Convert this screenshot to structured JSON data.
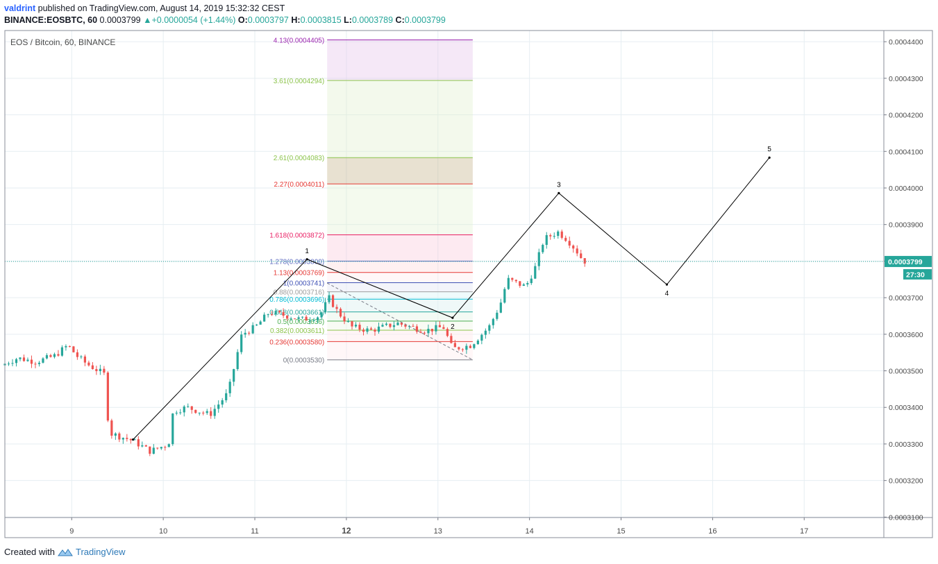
{
  "header": {
    "author": "valdrint",
    "published_text": "published on TradingView.com, August 14, 2019 15:32:32 CEST",
    "symbol": "BINANCE:EOSBTC, 60",
    "last": "0.0003799",
    "change": "+0.0000054 (+1.44%)",
    "o_label": "O:",
    "o_value": "0.0003797",
    "h_label": "H:",
    "h_value": "0.0003815",
    "l_label": "L:",
    "l_value": "0.0003789",
    "c_label": "C:",
    "c_value": "0.0003799"
  },
  "footer": {
    "created_with": "Created with",
    "brand": "TradingView"
  },
  "colors": {
    "up": "#26a69a",
    "down": "#ef5350",
    "grid": "#e6eef2",
    "axis": "#787b86",
    "price_line": "#26a69a",
    "wave_line": "#000000"
  },
  "chart_data": {
    "type": "candlestick",
    "title": "EOS / Bitcoin, 60, BINANCE",
    "x_axis": {
      "ticks": [
        "9",
        "10",
        "11",
        "12",
        "13",
        "14",
        "15",
        "16",
        "17"
      ],
      "bold_tick": "12",
      "range_days": [
        8.27,
        17.87
      ]
    },
    "y_axis": {
      "ticks": [
        "0.0003100",
        "0.0003200",
        "0.0003300",
        "0.0003400",
        "0.0003500",
        "0.0003600",
        "0.0003700",
        "0.0003800",
        "0.0003900",
        "0.0004000",
        "0.0004100",
        "0.0004200",
        "0.0004300",
        "0.0004400"
      ],
      "range": [
        0.00030988,
        0.00044306
      ]
    },
    "current_price": {
      "label": "0.0003799",
      "countdown": "27:30",
      "value": 0.0003799
    },
    "path_points": [
      [
        8.27,
        0.0003515
      ],
      [
        8.45,
        0.0003535
      ],
      [
        8.65,
        0.0003525
      ],
      [
        8.85,
        0.000354
      ],
      [
        9.0,
        0.000357
      ],
      [
        9.1,
        0.000354
      ],
      [
        9.2,
        0.000352
      ],
      [
        9.4,
        0.000349
      ],
      [
        9.45,
        0.000333
      ],
      [
        9.7,
        0.000331
      ],
      [
        9.9,
        0.000328
      ],
      [
        10.1,
        0.00033
      ],
      [
        10.15,
        0.000339
      ],
      [
        10.3,
        0.00034
      ],
      [
        10.55,
        0.000338
      ],
      [
        10.75,
        0.000344
      ],
      [
        10.9,
        0.00036
      ],
      [
        11.05,
        0.000362
      ],
      [
        11.2,
        0.000366
      ],
      [
        11.4,
        0.000365
      ],
      [
        11.55,
        0.000364
      ],
      [
        11.75,
        0.000365
      ],
      [
        11.85,
        0.00037
      ],
      [
        11.95,
        0.000366
      ],
      [
        12.1,
        0.000362
      ],
      [
        12.3,
        0.000361
      ],
      [
        12.6,
        0.000363
      ],
      [
        12.9,
        0.000361
      ],
      [
        13.1,
        0.000362
      ],
      [
        13.2,
        0.000356
      ],
      [
        13.4,
        0.000357
      ],
      [
        13.6,
        0.000362
      ],
      [
        13.72,
        0.000368
      ],
      [
        13.8,
        0.000375
      ],
      [
        14.0,
        0.000373
      ],
      [
        14.1,
        0.000378
      ],
      [
        14.2,
        0.000386
      ],
      [
        14.35,
        0.000388
      ],
      [
        14.45,
        0.000386
      ],
      [
        14.55,
        0.000383
      ],
      [
        14.63,
        0.00038
      ]
    ],
    "fib_extension": {
      "levels": [
        {
          "label": "4.13(0.0004405)",
          "value": 0.0004405,
          "color": "#9c27b0",
          "band": "rgba(225,190,231,0.35)"
        },
        {
          "label": "3.61(0.0004294)",
          "value": 0.0004294,
          "color": "#8bc34a",
          "band": "rgba(220,237,200,0.35)"
        },
        {
          "label": "2.61(0.0004083)",
          "value": 0.0004083,
          "color": "#8bc34a",
          "band": "rgba(188,170,124,0.35)"
        },
        {
          "label": "2.27(0.0004011)",
          "value": 0.0004011,
          "color": "#e53935",
          "band": "rgba(220,237,200,0.30)"
        },
        {
          "label": "1.618(0.0003872)",
          "value": 0.0003872,
          "color": "#e91e63",
          "band": "rgba(248,187,208,0.30)"
        },
        {
          "label": "1.278(0.0003800)",
          "value": 0.00038,
          "color": "#5c6bc0",
          "band": "rgba(255,205,210,0.30)"
        },
        {
          "label": "1.13(0.0003769)",
          "value": 0.0003769,
          "color": "#e53935",
          "band": "rgba(255,235,238,0.40)"
        },
        {
          "label": "1(0.0003741)",
          "value": 0.0003741,
          "color": "#3f51b5",
          "band": "rgba(232,234,246,0.50)"
        },
        {
          "label": "0.88(0.0003716)",
          "value": 0.0003716,
          "color": "#9e9e9e",
          "band": "rgba(224,247,250,0.50)"
        },
        {
          "label": "0.786(0.0003696)",
          "value": 0.0003696,
          "color": "#00bcd4",
          "band": "rgba(224,242,241,0.50)"
        },
        {
          "label": "0.618(0.0003661)",
          "value": 0.0003661,
          "color": "#26a69a",
          "band": "rgba(232,245,233,0.50)"
        },
        {
          "label": "0.5(0.0003636)",
          "value": 0.0003636,
          "color": "#4caf50",
          "band": "rgba(241,248,233,0.50)"
        },
        {
          "label": "0.382(0.0003611)",
          "value": 0.0003611,
          "color": "#8bc34a",
          "band": "rgba(255,235,238,0.50)"
        },
        {
          "label": "0.236(0.0003580)",
          "value": 0.000358,
          "color": "#e53935",
          "band": "rgba(255,235,238,0.40)"
        },
        {
          "label": "0(0.0003530)",
          "value": 0.000353,
          "color": "#787b86",
          "band": null
        }
      ],
      "x_range": [
        11.79,
        13.38
      ]
    },
    "wave_points": [
      {
        "label": "",
        "x": 9.67,
        "y": 0.0003312
      },
      {
        "label": "1",
        "x": 11.57,
        "y": 0.0003805
      },
      {
        "label": "2",
        "x": 13.16,
        "y": 0.0003645
      },
      {
        "label": "3",
        "x": 14.32,
        "y": 0.0003986
      },
      {
        "label": "4",
        "x": 15.5,
        "y": 0.0003736
      },
      {
        "label": "5",
        "x": 16.62,
        "y": 0.0004083
      }
    ],
    "trend_lines": [
      {
        "from": [
          11.57,
          0.0003805
        ],
        "to": [
          13.16,
          0.0003645
        ],
        "style": "solid"
      },
      {
        "from": [
          11.79,
          0.000374
        ],
        "to": [
          13.38,
          0.000353
        ],
        "style": "dashed"
      }
    ]
  }
}
